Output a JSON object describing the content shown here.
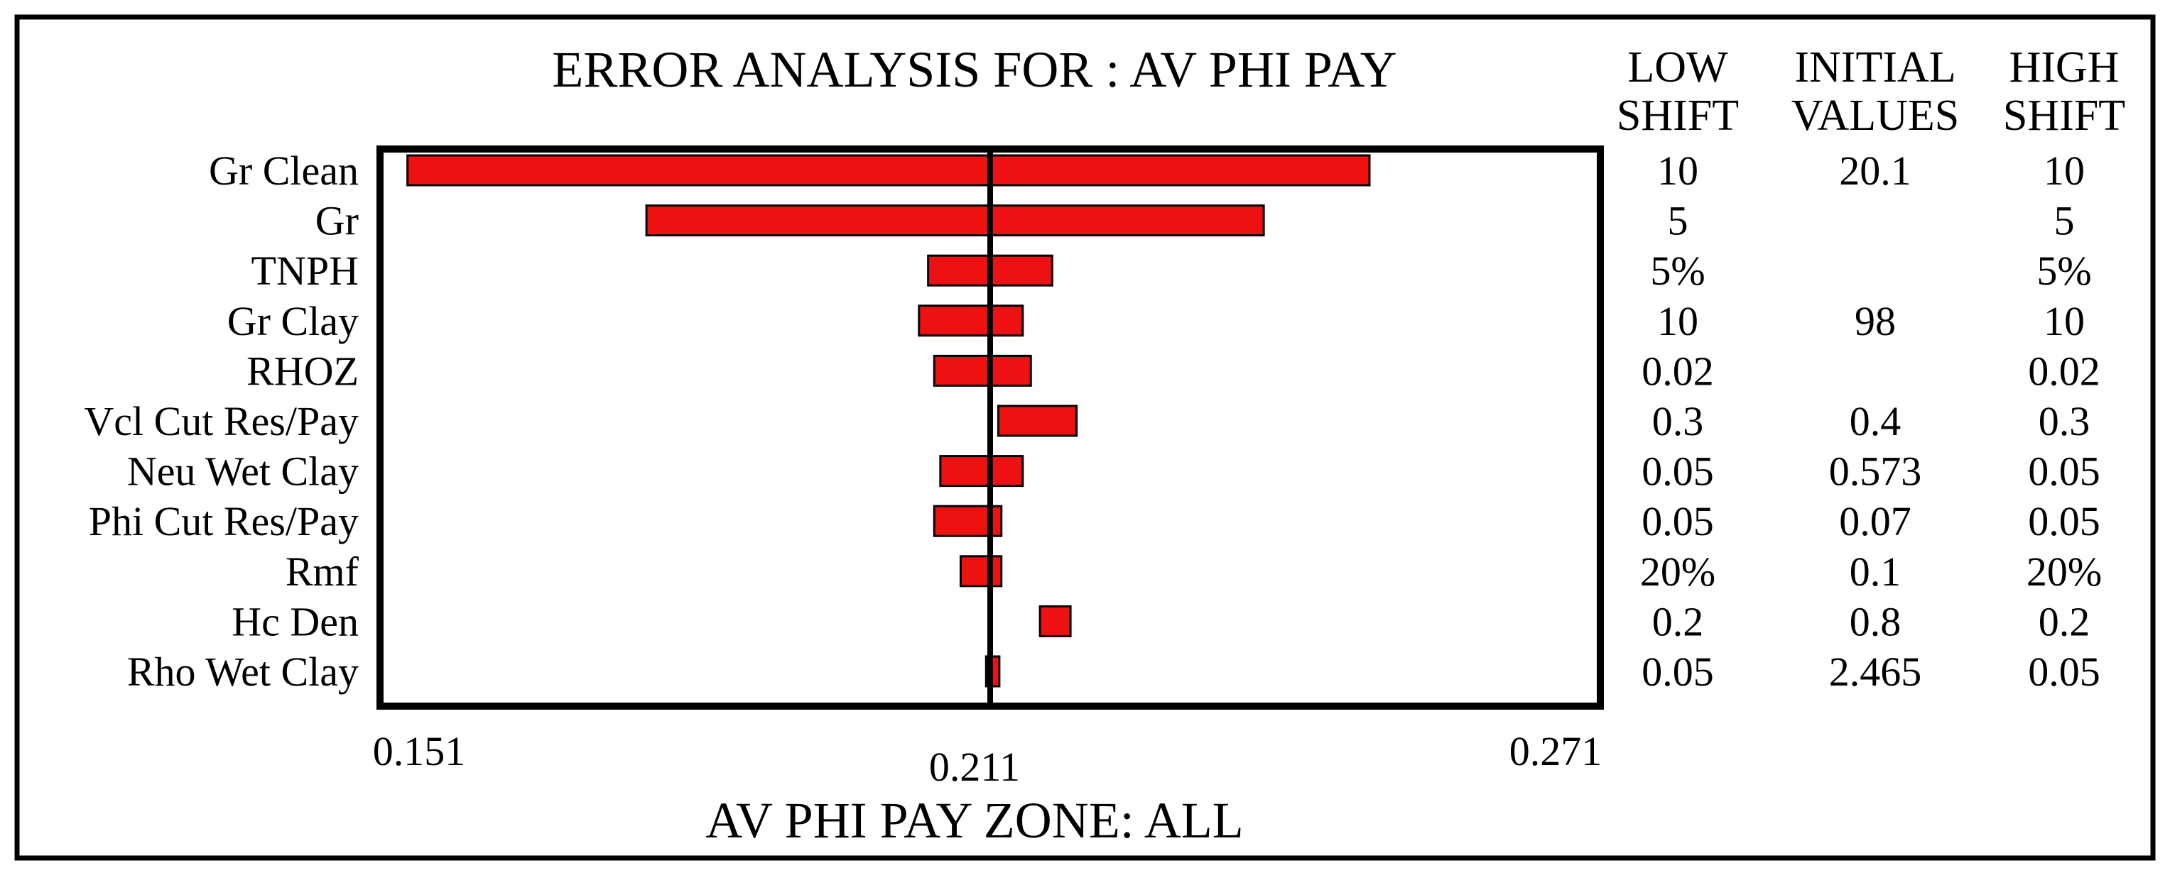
{
  "chart_data": {
    "type": "bar",
    "title": "ERROR ANALYSIS FOR : AV PHI PAY",
    "xlabel": "AV PHI PAY   ZONE: ALL",
    "xlim": [
      0.151,
      0.271
    ],
    "x_ticks": [
      "0.151",
      "0.211",
      "0.271"
    ],
    "baseline": 0.211,
    "bar_color": "#ee1111",
    "table_headers": {
      "low": [
        "LOW",
        "SHIFT"
      ],
      "initial": [
        "INITIAL",
        "VALUES"
      ],
      "high": [
        "HIGH",
        "SHIFT"
      ]
    },
    "categories": [
      "Gr Clean",
      "Gr",
      "TNPH",
      "Gr Clay",
      "RHOZ",
      "Vcl Cut Res/Pay",
      "Neu Wet Clay",
      "Phi Cut Res/Pay",
      "Rmf",
      "Hc Den",
      "Rho Wet Clay"
    ],
    "bars": [
      {
        "low": 0.1537,
        "high": 0.2483
      },
      {
        "low": 0.1772,
        "high": 0.2379
      },
      {
        "low": 0.2049,
        "high": 0.2171
      },
      {
        "low": 0.204,
        "high": 0.2142
      },
      {
        "low": 0.2055,
        "high": 0.215
      },
      {
        "low": 0.2118,
        "high": 0.2195
      },
      {
        "low": 0.2061,
        "high": 0.2142
      },
      {
        "low": 0.2055,
        "high": 0.2121
      },
      {
        "low": 0.2081,
        "high": 0.2121
      },
      {
        "low": 0.2159,
        "high": 0.2189
      },
      {
        "low": 0.2106,
        "high": 0.2119
      }
    ],
    "rows": [
      {
        "low": "10",
        "initial": "20.1",
        "high": "10"
      },
      {
        "low": "5",
        "initial": "",
        "high": "5"
      },
      {
        "low": "5%",
        "initial": "",
        "high": "5%"
      },
      {
        "low": "10",
        "initial": "98",
        "high": "10"
      },
      {
        "low": "0.02",
        "initial": "",
        "high": "0.02"
      },
      {
        "low": "0.3",
        "initial": "0.4",
        "high": "0.3"
      },
      {
        "low": "0.05",
        "initial": "0.573",
        "high": "0.05"
      },
      {
        "low": "0.05",
        "initial": "0.07",
        "high": "0.05"
      },
      {
        "low": "20%",
        "initial": "0.1",
        "high": "20%"
      },
      {
        "low": "0.2",
        "initial": "0.8",
        "high": "0.2"
      },
      {
        "low": "0.05",
        "initial": "2.465",
        "high": "0.05"
      }
    ]
  }
}
